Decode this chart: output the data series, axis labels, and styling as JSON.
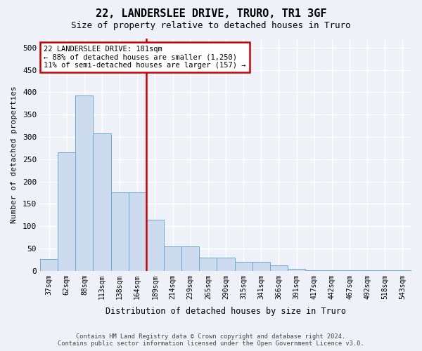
{
  "title": "22, LANDERSLEE DRIVE, TRURO, TR1 3GF",
  "subtitle": "Size of property relative to detached houses in Truro",
  "xlabel": "Distribution of detached houses by size in Truro",
  "ylabel": "Number of detached properties",
  "bar_color": "#ccdcee",
  "bar_edge_color": "#6aaad4",
  "bar_values": [
    27,
    265,
    393,
    307,
    175,
    175,
    115,
    55,
    55,
    30,
    30,
    20,
    20,
    13,
    5,
    1,
    1,
    1,
    1,
    1,
    2
  ],
  "bar_labels": [
    "37sqm",
    "62sqm",
    "88sqm",
    "113sqm",
    "138sqm",
    "164sqm",
    "189sqm",
    "214sqm",
    "239sqm",
    "265sqm",
    "290sqm",
    "315sqm",
    "341sqm",
    "366sqm",
    "391sqm",
    "417sqm",
    "442sqm",
    "467sqm",
    "492sqm",
    "518sqm",
    "543sqm"
  ],
  "vline_x_index": 6,
  "vline_color": "#cc0000",
  "annotation_line1": "22 LANDERSLEE DRIVE: 181sqm",
  "annotation_line2": "← 88% of detached houses are smaller (1,250)",
  "annotation_line3": "11% of semi-detached houses are larger (157) →",
  "annotation_box_edgecolor": "#cc0000",
  "ylim": [
    0,
    520
  ],
  "yticks": [
    0,
    50,
    100,
    150,
    200,
    250,
    300,
    350,
    400,
    450,
    500
  ],
  "bg_color": "#eef2f8",
  "grid_color": "#ffffff",
  "footer_line1": "Contains HM Land Registry data © Crown copyright and database right 2024.",
  "footer_line2": "Contains public sector information licensed under the Open Government Licence v3.0."
}
